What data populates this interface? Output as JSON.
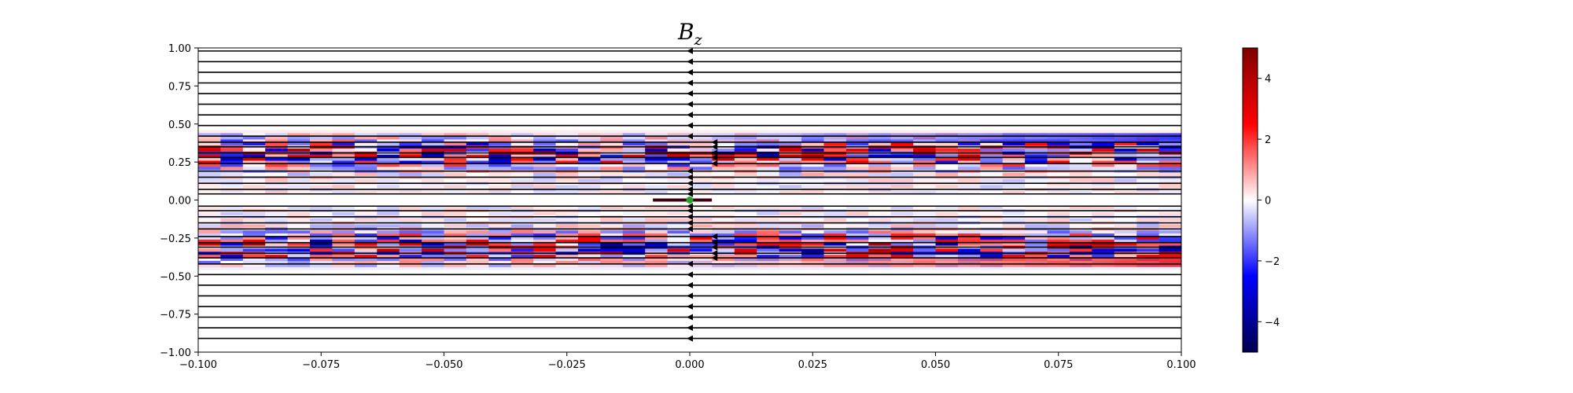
{
  "chart_data": {
    "type": "heatmap",
    "title": "B",
    "title_subscript": "z",
    "xlabel": "",
    "ylabel": "",
    "xlim": [
      -0.1,
      0.1
    ],
    "ylim": [
      -1.0,
      1.0
    ],
    "x_ticks": [
      -0.1,
      -0.075,
      -0.05,
      -0.025,
      0.0,
      0.025,
      0.05,
      0.075,
      0.1
    ],
    "x_tick_labels": [
      "−0.100",
      "−0.075",
      "−0.050",
      "−0.025",
      "0.000",
      "0.025",
      "0.050",
      "0.075",
      "0.100"
    ],
    "y_ticks": [
      1.0,
      0.75,
      0.5,
      0.25,
      0.0,
      -0.25,
      -0.5,
      -0.75,
      -1.0
    ],
    "y_tick_labels": [
      "1.00",
      "0.75",
      "0.50",
      "0.25",
      "0.00",
      "−0.25",
      "−0.50",
      "−0.75",
      "−1.00"
    ],
    "colormap": "seismic",
    "colormap_colors": [
      "#00004c",
      "#0000ff",
      "#ffffff",
      "#ff0000",
      "#7f0000"
    ],
    "clim": [
      -5,
      5
    ],
    "colorbar_ticks": [
      4,
      2,
      0,
      -2,
      -4
    ],
    "colorbar_tick_labels": [
      "4",
      "2",
      "0",
      "−2",
      "−4"
    ],
    "streamlines": {
      "direction": "negative-x",
      "color": "#000000",
      "y_values": [
        0.98,
        0.91,
        0.84,
        0.77,
        0.7,
        0.63,
        0.56,
        0.49,
        0.42,
        0.38,
        0.35,
        0.31,
        0.28,
        0.24,
        0.19,
        0.15,
        0.11,
        0.07,
        0.04,
        -0.04,
        -0.07,
        -0.11,
        -0.15,
        -0.19,
        -0.24,
        -0.28,
        -0.31,
        -0.35,
        -0.38,
        -0.42,
        -0.49,
        -0.56,
        -0.63,
        -0.7,
        -0.77,
        -0.84,
        -0.91
      ],
      "arrow_x": 0.0,
      "inner_arrow_x": 0.005
    },
    "marker": {
      "x": 0.0,
      "y": 0.0,
      "color": "#2ca02c"
    },
    "current_sheet": {
      "x_range": [
        -0.0075,
        0.0045
      ],
      "y": 0.0,
      "color": "#3d0010"
    },
    "field_band": {
      "abs_y_range": [
        0.04,
        0.44
      ],
      "upper_edge_sign_right": "negative",
      "lower_edge_sign_right": "positive"
    }
  }
}
